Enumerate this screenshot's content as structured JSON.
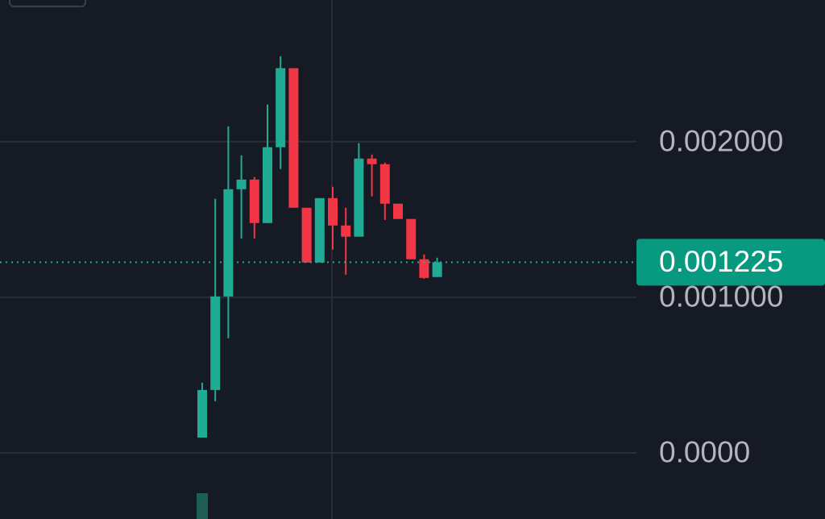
{
  "chart_data": {
    "type": "candlestick",
    "ylim": [
      -0.000425,
      0.00291
    ],
    "yticks": [
      {
        "value": 0.002,
        "label": "0.002000"
      },
      {
        "value": 0.001,
        "label": "0.001000"
      },
      {
        "value": 0,
        "label": "0.0000"
      }
    ],
    "grid": true,
    "up_color": "#22ab94",
    "down_color": "#f23645",
    "current_price": 0.001225,
    "open": [
      9.8e-05,
      0.000404,
      0.001005,
      0.001694,
      0.001756,
      0.001477,
      0.001964,
      0.002472,
      0.001575,
      0.001223,
      0.001637,
      0.001461,
      0.001389,
      0.001891,
      0.001855,
      0.001601,
      0.001503,
      0.001244,
      0.00113
    ],
    "high": [
      0.000451,
      0.001632,
      0.002098,
      0.001912,
      0.001772,
      0.002238,
      0.002549,
      0.002472,
      0.001575,
      0.001637,
      0.00171,
      0.001575,
      0.00199,
      0.001917,
      0.001865,
      0.001601,
      0.001503,
      0.001275,
      0.001254
    ],
    "low": [
      9.8e-05,
      0.000332,
      0.000736,
      0.001378,
      0.001378,
      0.001477,
      0.001824,
      0.001575,
      0.001223,
      0.001223,
      0.001306,
      0.001145,
      0.001389,
      0.001648,
      0.001497,
      0.001503,
      0.001244,
      0.001119,
      0.00113
    ],
    "close": [
      0.000404,
      0.001005,
      0.001694,
      0.001756,
      0.001477,
      0.001964,
      0.002472,
      0.001575,
      0.001223,
      0.001637,
      0.001461,
      0.001389,
      0.001891,
      0.001855,
      0.001601,
      0.001503,
      0.001244,
      0.001124,
      0.001225
    ]
  }
}
